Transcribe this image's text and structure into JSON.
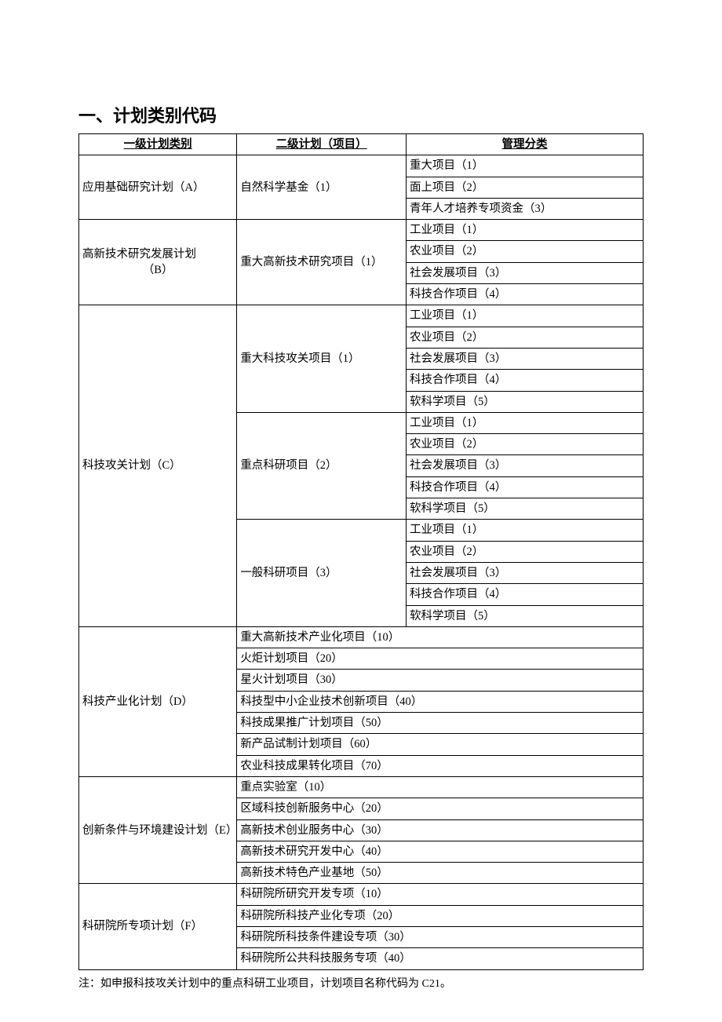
{
  "title": "一、计划类别代码",
  "headers": {
    "col1": "一级计划类别",
    "col2": "二级计划（项目）",
    "col3": "管理分类"
  },
  "sectionA": {
    "level1": "应用基础研究计划（A）",
    "level2": "自然科学基金（1）",
    "rows": [
      "重大项目（1）",
      "面上项目（2）",
      "青年人才培养专项资金（3）"
    ]
  },
  "sectionB": {
    "level1_line1": "高新技术研究发展计划",
    "level1_line2": "（B）",
    "level2": "重大高新技术研究项目（1）",
    "rows": [
      "工业项目（1）",
      "农业项目（2）",
      "社会发展项目（3）",
      "科技合作项目（4）"
    ]
  },
  "sectionC": {
    "level1": "科技攻关计划（C）",
    "sub1": {
      "level2": "重大科技攻关项目（1）",
      "rows": [
        "工业项目（1）",
        "农业项目（2）",
        "社会发展项目（3）",
        "科技合作项目（4）",
        "软科学项目（5）"
      ]
    },
    "sub2": {
      "level2": "重点科研项目（2）",
      "rows": [
        "工业项目（1）",
        "农业项目（2）",
        "社会发展项目（3）",
        "科技合作项目（4）",
        "软科学项目（5）"
      ]
    },
    "sub3": {
      "level2": "一般科研项目（3）",
      "rows": [
        "工业项目（1）",
        "农业项目（2）",
        "社会发展项目（3）",
        "科技合作项目（4）",
        "软科学项目（5）"
      ]
    }
  },
  "sectionD": {
    "level1": "科技产业化计划（D）",
    "rows": [
      "重大高新技术产业化项目（10）",
      "火炬计划项目（20）",
      "星火计划项目（30）",
      "科技型中小企业技术创新项目（40）",
      "科技成果推广计划项目（50）",
      "新产品试制计划项目（60）",
      "农业科技成果转化项目（70）"
    ]
  },
  "sectionE": {
    "level1": "创新条件与环境建设计划（E）",
    "rows": [
      "重点实验室（10）",
      "区域科技创新服务中心（20）",
      "高新技术创业服务中心（30）",
      "高新技术研究开发中心（40）",
      "高新技术特色产业基地（50）"
    ]
  },
  "sectionF": {
    "level1": "科研院所专项计划（F）",
    "rows": [
      "科研院所研究开发专项（10）",
      "科研院所科技产业化专项（20）",
      "科研院所科技条件建设专项（30）",
      "科研院所公共科技服务专项（40）"
    ]
  },
  "note": "注：如申报科技攻关计划中的重点科研工业项目，计划项目名称代码为 C21。"
}
